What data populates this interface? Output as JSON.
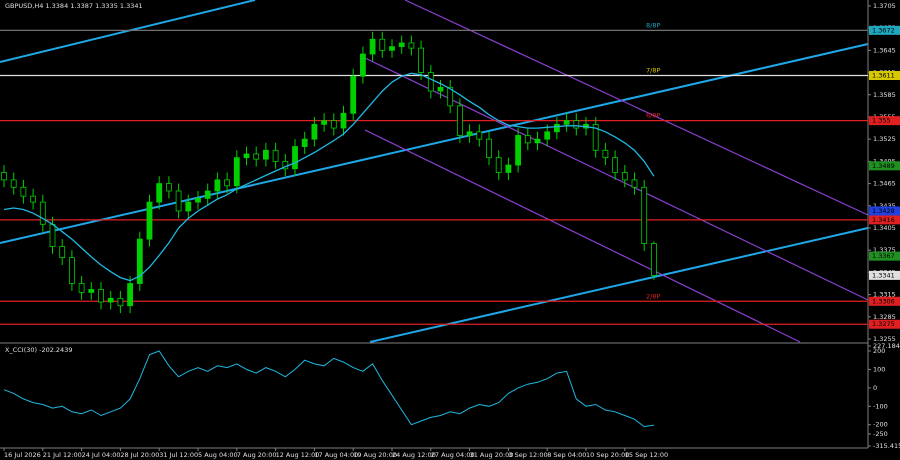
{
  "chart_data": {
    "type": "candlestick",
    "title": "GBPUSD,H4  1.3384 1.3387 1.3335 1.3341",
    "categories": [
      "16 Jul 2026",
      null,
      null,
      null,
      "21 Jul 12:00",
      null,
      null,
      null,
      "24 Jul 04:00",
      null,
      null,
      null,
      "28 Jul 20:00",
      null,
      null,
      null,
      "31 Jul 12:00",
      null,
      null,
      null,
      "5 Aug 04:00",
      null,
      null,
      null,
      "7 Aug 20:00",
      null,
      null,
      null,
      "12 Aug 12:00",
      null,
      null,
      null,
      "17 Aug 04:00",
      null,
      null,
      null,
      "19 Aug 20:00",
      null,
      null,
      null,
      "24 Aug 12:00",
      null,
      null,
      null,
      "27 Aug 04:00",
      null,
      null,
      null,
      "31 Aug 20:00",
      null,
      null,
      null,
      "3 Sep 12:00",
      null,
      null,
      null,
      "8 Sep 04:00",
      null,
      null,
      null,
      "10 Sep 20:00",
      null,
      null,
      null,
      "15 Sep 12:00",
      null,
      null,
      null
    ],
    "open": [
      1.348,
      1.347,
      1.346,
      1.3448,
      1.344,
      1.341,
      1.338,
      1.3365,
      1.333,
      1.3318,
      1.3322,
      1.3305,
      1.331,
      1.33,
      1.333,
      1.339,
      1.344,
      1.3465,
      1.3455,
      1.3428,
      1.344,
      1.3445,
      1.3455,
      1.347,
      1.3462,
      1.35,
      1.3505,
      1.3498,
      1.351,
      1.3495,
      1.3485,
      1.3515,
      1.3525,
      1.3545,
      1.355,
      1.354,
      1.356,
      1.361,
      1.364,
      1.366,
      1.3645,
      1.365,
      1.3655,
      1.3648,
      1.3615,
      1.359,
      1.3595,
      1.357,
      1.353,
      1.3535,
      1.3525,
      1.35,
      1.348,
      1.349,
      1.353,
      1.352,
      1.3525,
      1.3535,
      1.3545,
      1.355,
      1.354,
      1.3545,
      1.351,
      1.35,
      1.348,
      1.347,
      1.346,
      1.3384
    ],
    "high": [
      1.349,
      1.348,
      1.347,
      1.3458,
      1.345,
      1.342,
      1.339,
      1.3375,
      1.334,
      1.3332,
      1.3332,
      1.332,
      1.332,
      1.334,
      1.34,
      1.345,
      1.3475,
      1.3475,
      1.3465,
      1.345,
      1.3455,
      1.3465,
      1.348,
      1.348,
      1.351,
      1.3515,
      1.3515,
      1.352,
      1.352,
      1.3505,
      1.3525,
      1.3535,
      1.3555,
      1.356,
      1.356,
      1.357,
      1.362,
      1.365,
      1.367,
      1.367,
      1.366,
      1.3665,
      1.3665,
      1.3658,
      1.3625,
      1.3605,
      1.3605,
      1.358,
      1.3545,
      1.3545,
      1.3535,
      1.351,
      1.35,
      1.354,
      1.354,
      1.3535,
      1.3545,
      1.3555,
      1.356,
      1.356,
      1.3555,
      1.3555,
      1.352,
      1.351,
      1.349,
      1.348,
      1.347,
      1.3387
    ],
    "low": [
      1.346,
      1.345,
      1.3438,
      1.343,
      1.34,
      1.337,
      1.3355,
      1.332,
      1.3308,
      1.3308,
      1.3295,
      1.3295,
      1.329,
      1.329,
      1.332,
      1.338,
      1.343,
      1.3445,
      1.3418,
      1.3418,
      1.343,
      1.3435,
      1.3445,
      1.3452,
      1.3452,
      1.349,
      1.3488,
      1.3488,
      1.3485,
      1.3475,
      1.3475,
      1.3505,
      1.3515,
      1.3535,
      1.353,
      1.353,
      1.355,
      1.36,
      1.363,
      1.3635,
      1.3635,
      1.364,
      1.3638,
      1.3605,
      1.358,
      1.358,
      1.356,
      1.352,
      1.352,
      1.3515,
      1.349,
      1.347,
      1.347,
      1.348,
      1.351,
      1.351,
      1.3515,
      1.3525,
      1.3535,
      1.353,
      1.353,
      1.35,
      1.349,
      1.347,
      1.346,
      1.345,
      1.3374,
      1.3335
    ],
    "close": [
      1.347,
      1.346,
      1.3448,
      1.344,
      1.341,
      1.338,
      1.3365,
      1.333,
      1.3318,
      1.3322,
      1.3305,
      1.331,
      1.33,
      1.333,
      1.339,
      1.344,
      1.3465,
      1.3455,
      1.3428,
      1.344,
      1.3445,
      1.3455,
      1.347,
      1.3462,
      1.35,
      1.3505,
      1.3498,
      1.351,
      1.3495,
      1.3485,
      1.3515,
      1.3525,
      1.3545,
      1.355,
      1.354,
      1.356,
      1.361,
      1.364,
      1.366,
      1.3645,
      1.365,
      1.3655,
      1.3648,
      1.3615,
      1.359,
      1.3595,
      1.357,
      1.353,
      1.3535,
      1.3525,
      1.35,
      1.348,
      1.349,
      1.353,
      1.352,
      1.3525,
      1.3535,
      1.3545,
      1.355,
      1.354,
      1.3545,
      1.351,
      1.35,
      1.348,
      1.347,
      1.346,
      1.3384,
      1.3341
    ],
    "color": "#00d000",
    "ma": {
      "color": "#20b8e0",
      "values": [
        1.343,
        1.3432,
        1.343,
        1.3425,
        1.3418,
        1.341,
        1.34,
        1.339,
        1.3378,
        1.3366,
        1.3355,
        1.3346,
        1.3338,
        1.3334,
        1.334,
        1.3352,
        1.3368,
        1.3385,
        1.3405,
        1.3418,
        1.3428,
        1.3436,
        1.3444,
        1.345,
        1.3458,
        1.3464,
        1.347,
        1.3476,
        1.3482,
        1.3488,
        1.3493,
        1.35,
        1.3507,
        1.3515,
        1.3523,
        1.3532,
        1.3545,
        1.356,
        1.3575,
        1.359,
        1.3602,
        1.361,
        1.3614,
        1.3612,
        1.3606,
        1.36,
        1.3593,
        1.3585,
        1.3576,
        1.3568,
        1.3558,
        1.355,
        1.3544,
        1.3542,
        1.354,
        1.354,
        1.3541,
        1.3542,
        1.3543,
        1.3543,
        1.3542,
        1.354,
        1.3535,
        1.3528,
        1.352,
        1.351,
        1.3495,
        1.3475
      ]
    },
    "ylim": [
      1.3251,
      1.3713
    ],
    "yticks": [
      1.3705,
      1.3675,
      1.3645,
      1.3615,
      1.3585,
      1.3555,
      1.3525,
      1.3495,
      1.3465,
      1.3435,
      1.3405,
      1.3375,
      1.3345,
      1.3315,
      1.3285,
      1.3255
    ],
    "levels": [
      {
        "value": 1.3672,
        "tag": "8/8P",
        "color": "#20a8c0",
        "line": "#707070"
      },
      {
        "value": 1.3611,
        "tag": "7/8P",
        "color": "#d8c800",
        "line": "#e0e0e0"
      },
      {
        "value": 1.355,
        "tag": "6/8P",
        "color": "#e02020",
        "line": "#e02020"
      },
      {
        "value": 1.3416,
        "color": "#e02020",
        "line": "#e02020"
      },
      {
        "value": 1.3306,
        "tag": "2/8P",
        "color": "#e02020",
        "line": "#e02020"
      },
      {
        "value": 1.3275,
        "color": "#e02020",
        "line": "#e02020"
      }
    ],
    "price_markers": [
      {
        "value": 1.3489,
        "color": "#209020"
      },
      {
        "value": 1.3428,
        "color": "#2040e0"
      },
      {
        "value": 1.3367,
        "color": "#209020"
      },
      {
        "value": 1.3341,
        "color": "#e0e0e0"
      }
    ],
    "cci": {
      "title": "X_CCI(30) -202.2439",
      "color": "#20b8e0",
      "ylim": [
        -315.415,
        227.1846
      ],
      "yticks": [
        227.1846,
        200,
        100,
        0,
        -100,
        -200,
        -250,
        -315.415
      ],
      "values": [
        -10,
        -30,
        -60,
        -80,
        -90,
        -110,
        -100,
        -130,
        -140,
        -120,
        -150,
        -130,
        -110,
        -60,
        50,
        180,
        200,
        120,
        60,
        90,
        110,
        90,
        120,
        110,
        130,
        100,
        80,
        110,
        90,
        60,
        100,
        150,
        130,
        120,
        160,
        140,
        110,
        90,
        130,
        40,
        -40,
        -120,
        -200,
        -180,
        -160,
        -150,
        -130,
        -140,
        -110,
        -90,
        -100,
        -80,
        -30,
        0,
        20,
        30,
        50,
        80,
        90,
        -60,
        -100,
        -90,
        -120,
        -130,
        -150,
        -170,
        -210,
        -202.2439
      ]
    }
  }
}
